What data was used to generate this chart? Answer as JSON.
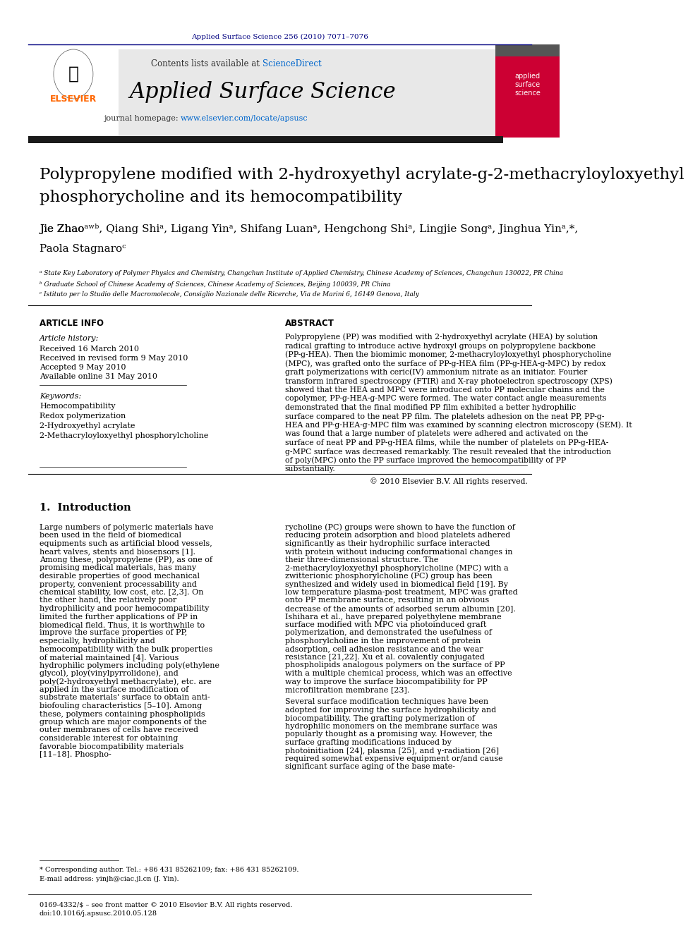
{
  "journal_ref": "Applied Surface Science 256 (2010) 7071–7076",
  "contents_line": "Contents lists available at ScienceDirect",
  "sciencedirect_color": "#0066cc",
  "journal_name": "Applied Surface Science",
  "journal_homepage": "journal homepage: www.elsevier.com/locate/apsusc",
  "homepage_color": "#0066cc",
  "header_bg": "#e8e8e8",
  "top_bar_color": "#1a1a2e",
  "title": "Polypropylene modified with 2-hydroxyethyl acrylate-g-2-methacryloyloxyethyl\nphosphorycholine and its hemocompatibility",
  "authors": "Jie Zhaoᵃʳᵇ, Qiang Shiᵃ, Ligang Yinᵃ, Shifang Luanᵃ, Hengchong Shiᵃ, Lingjie Songᵃ, Jinghua Yinᵃ,*,\nPaola Stagnaroᶜ",
  "affil_a": "ᵃ State Key Laboratory of Polymer Physics and Chemistry, Changchun Institute of Applied Chemistry, Chinese Academy of Sciences, Changchun 130022, PR China",
  "affil_b": "ᵇ Graduate School of Chinese Academy of Sciences, Chinese Academy of Sciences, Beijing 100039, PR China",
  "affil_c": "ᶜ Istituto per lo Studio delle Macromolecole, Consiglio Nazionale delle Ricerche, Via de Marini 6, 16149 Genova, Italy",
  "article_info_title": "ARTICLE INFO",
  "article_history_title": "Article history:",
  "received": "Received 16 March 2010",
  "received_revised": "Received in revised form 9 May 2010",
  "accepted": "Accepted 9 May 2010",
  "available": "Available online 31 May 2010",
  "keywords_title": "Keywords:",
  "keywords": [
    "Hemocompatibility",
    "Redox polymerization",
    "2-Hydroxyethyl acrylate",
    "2-Methacryloyloxyethyl phosphorylcholine"
  ],
  "abstract_title": "ABSTRACT",
  "abstract_text": "Polypropylene (PP) was modified with 2-hydroxyethyl acrylate (HEA) by solution radical grafting to introduce active hydroxyl groups on polypropylene backbone (PP-g-HEA). Then the biomimic monomer, 2-methacryloyloxyethyl phosphorycholine (MPC), was grafted onto the surface of PP-g-HEA film (PP-g-HEA-g-MPC) by redox graft polymerizations with ceric(IV) ammonium nitrate as an initiator. Fourier transform infrared spectroscopy (FTIR) and X-ray photoelectron spectroscopy (XPS) showed that the HEA and MPC were introduced onto PP molecular chains and the copolymer, PP-g-HEA-g-MPC were formed. The water contact angle measurements demonstrated that the final modified PP film exhibited a better hydrophilic surface compared to the neat PP film. The platelets adhesion on the neat PP, PP-g-HEA and PP-g-HEA-g-MPC film was examined by scanning electron microscopy (SEM). It was found that a large number of platelets were adhered and activated on the surface of neat PP and PP-g-HEA films, while the number of platelets on PP-g-HEA-g-MPC surface was decreased remarkably. The result revealed that the introduction of poly(MPC) onto the PP surface improved the hemocompatibility of PP substantially.",
  "copyright": "© 2010 Elsevier B.V. All rights reserved.",
  "intro_title": "1.  Introduction",
  "intro_col1": "Large numbers of polymeric materials have been used in the field of biomedical equipments such as artificial blood vessels, heart valves, stents and biosensors [1]. Among these, polypropylene (PP), as one of promising medical materials, has many desirable properties of good mechanical property, convenient processability and chemical stability, low cost, etc. [2,3]. On the other hand, the relatively poor hydrophilicity and poor hemocompatibility limited the further applications of PP in biomedical field. Thus, it is worthwhile to improve the surface properties of PP, especially, hydrophilicity and hemocompatibility with the bulk properties of material maintained [4]. Various hydrophilic polymers including poly(ethylene glycol), ploy(vinylpyrrolidone), and poly(2-hydroxyethyl methacrylate), etc. are applied in the surface modification of substrate materials' surface to obtain anti-biofouling characteristics [5–10]. Among these, polymers containing phospholipids group which are major components of the outer membranes of cells have received considerable interest for obtaining favorable biocompatibility materials [11–18]. Phospho-",
  "intro_col2": "rycholine (PC) groups were shown to have the function of reducing protein adsorption and blood platelets adhered significantly as their hydrophilic surface interacted with protein without inducing conformational changes in their three-dimensional structure. The 2-methacryloyloxyethyl phosphorylcholine (MPC) with a zwitterionic phosphorylcholine (PC) group has been synthesized and widely used in biomedical field [19]. By low temperature plasma-post treatment, MPC was grafted onto PP membrane surface, resulting in an obvious decrease of the amounts of adsorbed serum albumin [20]. Ishihara et al., have prepared polyethylene membrane surface modified with MPC via photoinduced graft polymerization, and demonstrated the usefulness of phosphorylcholine in the improvement of protein adsorption, cell adhesion resistance and the wear resistance [21,22]. Xu et al. covalently conjugated phospholipids analogous polymers on the surface of PP with a multiple chemical process, which was an effective way to improve the surface biocompatibility for PP microfiltration membrane [23].\n    Several surface modification techniques have been adopted for improving the surface hydrophilicity and biocompatibility. The grafting polymerization of hydrophilic monomers on the membrane surface was popularly thought as a promising way. However, the surface grafting modifications induced by photoinitiation [24], plasma [25], and γ-radiation [26] required somewhat expensive equipment or/and cause significant surface aging of the base mate-",
  "footer_line1": "0169-4332/$ – see front matter © 2010 Elsevier B.V. All rights reserved.",
  "footer_line2": "doi:10.1016/j.apsusc.2010.05.128",
  "corresponding": "* Corresponding author. Tel.: +86 431 85262109; fax: +86 431 85262109.",
  "email": "E-mail address: yinjh@ciac.jl.cn (J. Yin).",
  "background_color": "#ffffff",
  "text_color": "#000000",
  "journal_ref_color": "#000080",
  "elsevier_orange": "#ff6600"
}
